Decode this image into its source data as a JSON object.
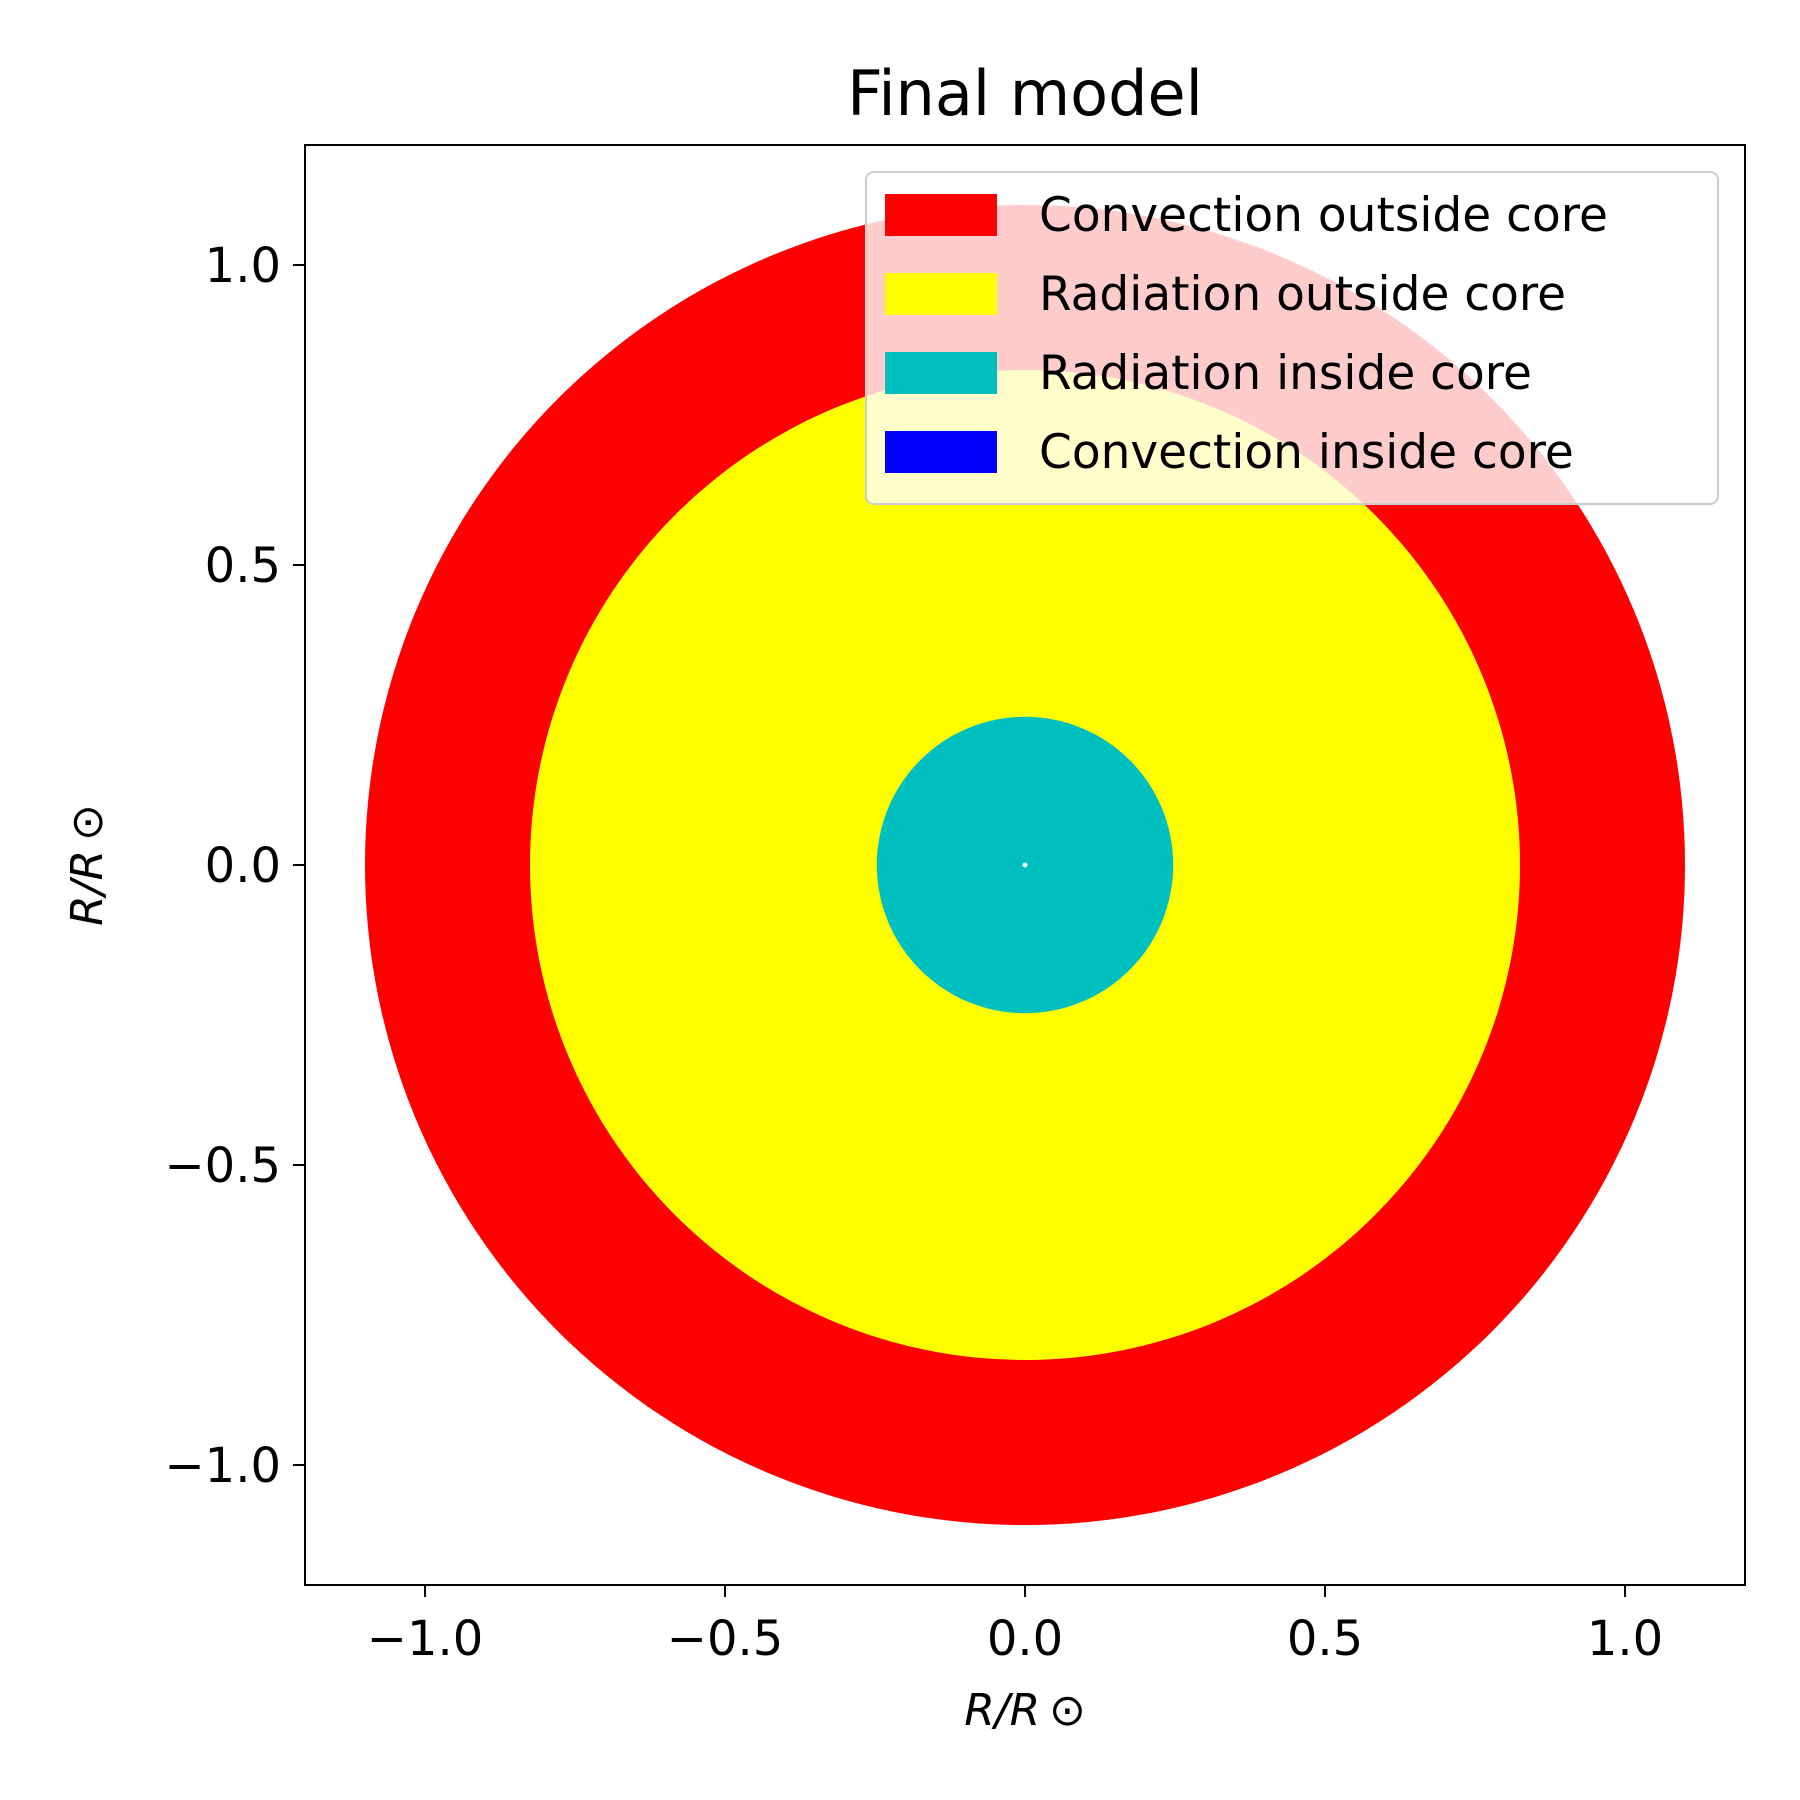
{
  "chart_data": {
    "type": "area",
    "title": "Final model",
    "xlabel": "R/R ⊙",
    "ylabel": "R/R ⊙",
    "xlim": [
      -1.2,
      1.2
    ],
    "ylim": [
      -1.2,
      1.2
    ],
    "xticks": [
      -1.0,
      -0.5,
      0.0,
      0.5,
      1.0
    ],
    "yticks": [
      -1.0,
      -0.5,
      0.0,
      0.5,
      1.0
    ],
    "xtick_labels": [
      "−1.0",
      "−0.5",
      "0.0",
      "0.5",
      "1.0"
    ],
    "ytick_labels": [
      "−1.0",
      "−0.5",
      "0.0",
      "0.5",
      "1.0"
    ],
    "grid": false,
    "legend_placement": "upper right",
    "regions": [
      {
        "name": "Convection outside core",
        "color": "#ff0000",
        "outer_radius": 1.1,
        "inner_radius": 0.825
      },
      {
        "name": "Radiation outside core",
        "color": "#ffff00",
        "outer_radius": 0.825,
        "inner_radius": 0.247
      },
      {
        "name": "Radiation inside core",
        "color": "#00bfbf",
        "outer_radius": 0.247,
        "inner_radius": 0.0
      },
      {
        "name": "Convection inside core",
        "color": "#0000ff",
        "outer_radius": 0.0,
        "inner_radius": 0.0
      }
    ],
    "center_marker": {
      "x": 0.0,
      "y": 0.0,
      "color": "#ffffff"
    }
  }
}
